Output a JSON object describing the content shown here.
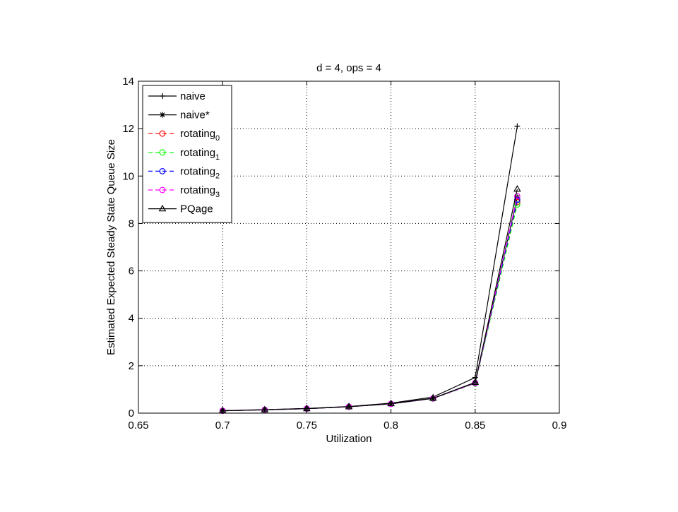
{
  "chart_data": {
    "type": "line",
    "title": "d = 4, ops = 4",
    "xlabel": "Utilization",
    "ylabel": "Estimated Expected Steady State Queue Size",
    "xlim": [
      0.65,
      0.9
    ],
    "ylim": [
      0,
      14
    ],
    "xticks": [
      0.65,
      0.7,
      0.75,
      0.8,
      0.85,
      0.9
    ],
    "xtick_labels": [
      "0.65",
      "0.7",
      "0.75",
      "0.8",
      "0.85",
      "0.9"
    ],
    "yticks": [
      0,
      2,
      4,
      6,
      8,
      10,
      12,
      14
    ],
    "ytick_labels": [
      "0",
      "2",
      "4",
      "6",
      "8",
      "10",
      "12",
      "14"
    ],
    "grid": true,
    "legend_position": "top-left",
    "x": [
      0.7,
      0.725,
      0.75,
      0.775,
      0.8,
      0.825,
      0.85,
      0.875
    ],
    "series": [
      {
        "name": "naive",
        "sub": "",
        "color": "#000000",
        "dash": false,
        "marker": "plus",
        "values": [
          0.1,
          0.15,
          0.2,
          0.28,
          0.42,
          0.68,
          1.5,
          12.1
        ]
      },
      {
        "name": "naive*",
        "sub": "",
        "color": "#000000",
        "dash": false,
        "marker": "star",
        "values": [
          0.1,
          0.14,
          0.19,
          0.27,
          0.39,
          0.62,
          1.28,
          9.1
        ]
      },
      {
        "name": "rotating",
        "sub": "0",
        "color": "#ff0000",
        "dash": true,
        "marker": "circle",
        "values": [
          0.1,
          0.14,
          0.19,
          0.27,
          0.39,
          0.62,
          1.26,
          8.9
        ]
      },
      {
        "name": "rotating",
        "sub": "1",
        "color": "#00ff00",
        "dash": true,
        "marker": "circle",
        "values": [
          0.1,
          0.14,
          0.19,
          0.27,
          0.39,
          0.61,
          1.25,
          8.8
        ]
      },
      {
        "name": "rotating",
        "sub": "2",
        "color": "#0000ff",
        "dash": true,
        "marker": "circle",
        "values": [
          0.1,
          0.14,
          0.19,
          0.27,
          0.39,
          0.62,
          1.27,
          9.0
        ]
      },
      {
        "name": "rotating",
        "sub": "3",
        "color": "#ff00ff",
        "dash": true,
        "marker": "circle",
        "values": [
          0.1,
          0.14,
          0.19,
          0.27,
          0.39,
          0.62,
          1.27,
          9.15
        ]
      },
      {
        "name": "PQage",
        "sub": "",
        "color": "#000000",
        "dash": false,
        "marker": "triangle",
        "values": [
          0.1,
          0.14,
          0.19,
          0.27,
          0.4,
          0.63,
          1.3,
          9.45
        ]
      }
    ]
  }
}
